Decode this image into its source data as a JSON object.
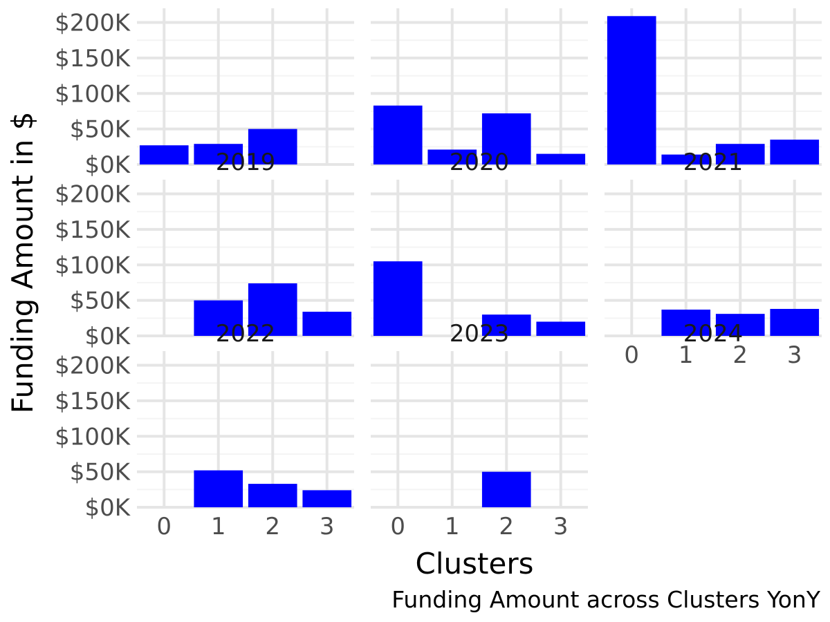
{
  "chart_data": {
    "type": "bar",
    "facet_by": "year",
    "ylabel": "Funding Amount in $",
    "xlabel": "Clusters",
    "caption": "Funding Amount across Clusters YonY",
    "categories": [
      "0",
      "1",
      "2",
      "3"
    ],
    "ylim": [
      0,
      220000
    ],
    "y_ticks": [
      0,
      50000,
      100000,
      150000,
      200000
    ],
    "y_tick_labels": [
      "$0K",
      "$50K",
      "$100K",
      "$150K",
      "$200K"
    ],
    "bar_color": "#0000ff",
    "grid": true,
    "facets": [
      {
        "label": "2019",
        "values": [
          27000,
          29000,
          50000,
          null
        ]
      },
      {
        "label": "2020",
        "values": [
          83000,
          21000,
          72000,
          15000
        ]
      },
      {
        "label": "2021",
        "values": [
          209000,
          14000,
          29000,
          35000
        ]
      },
      {
        "label": "2022",
        "values": [
          null,
          50000,
          74000,
          34000
        ]
      },
      {
        "label": "2023",
        "values": [
          105000,
          null,
          30000,
          20000
        ]
      },
      {
        "label": "2024",
        "values": [
          null,
          37000,
          31000,
          38000
        ]
      },
      {
        "label": "",
        "values": [
          null,
          52000,
          33000,
          24000
        ]
      },
      {
        "label": "",
        "values": [
          null,
          null,
          50000,
          null
        ]
      }
    ]
  }
}
